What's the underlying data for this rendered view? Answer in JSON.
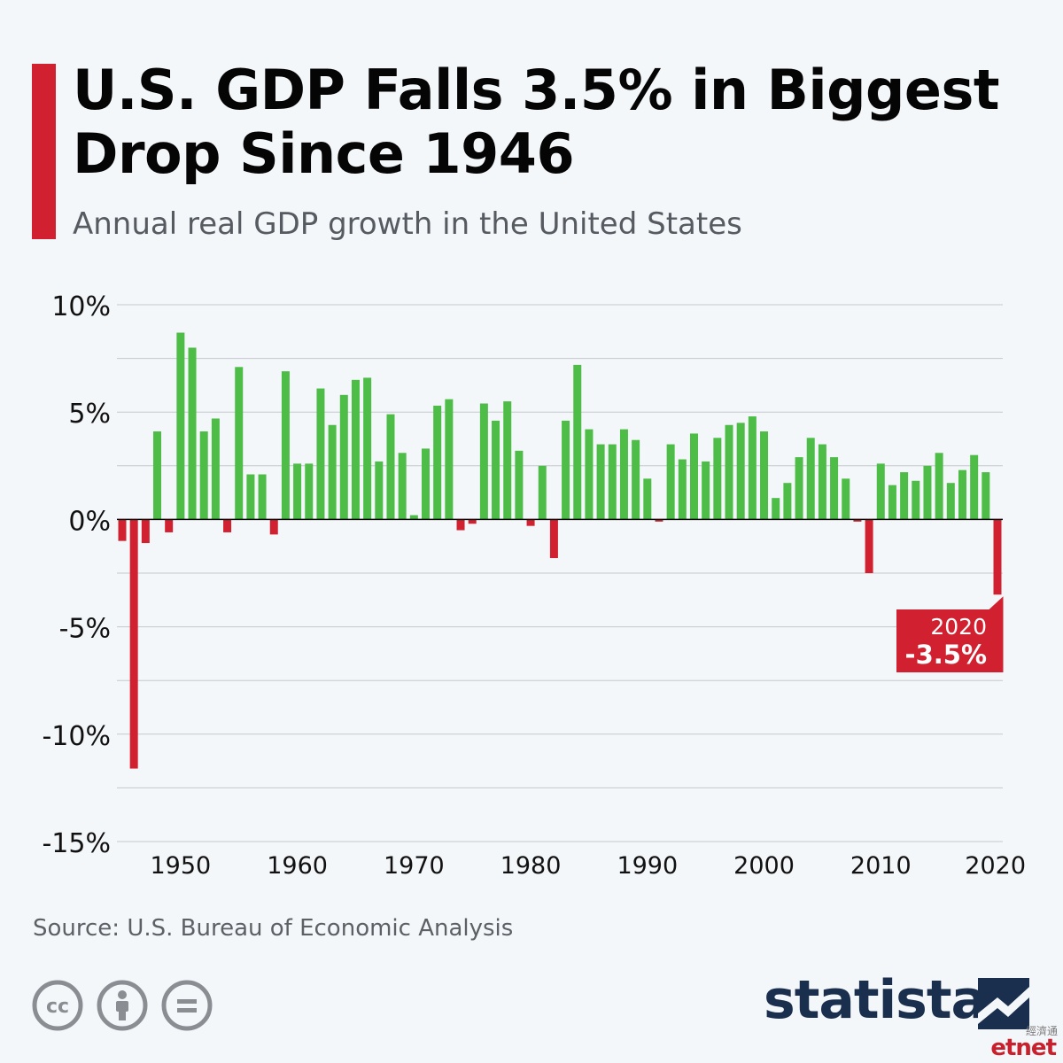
{
  "header": {
    "title": "U.S. GDP Falls 3.5% in Biggest Drop Since 1946",
    "subtitle": "Annual real GDP growth in the United States"
  },
  "footer": {
    "source": "Source: U.S. Bureau of Economic Analysis",
    "license_icons": [
      "cc-icon",
      "attribution-icon",
      "no-derivatives-icon"
    ],
    "brand": "statista",
    "watermark": "etnet",
    "watermark_cn": "經濟通"
  },
  "colors": {
    "positive": "#4dbd47",
    "negative": "#d1202f",
    "accent": "#d1202f",
    "grid": "#c5c8cc",
    "brand": "#1a2e4d"
  },
  "chart_data": {
    "type": "bar",
    "title": "U.S. GDP Falls 3.5% in Biggest Drop Since 1946",
    "subtitle": "Annual real GDP growth in the United States",
    "xlabel": "",
    "ylabel": "",
    "x": [
      1945,
      1946,
      1947,
      1948,
      1949,
      1950,
      1951,
      1952,
      1953,
      1954,
      1955,
      1956,
      1957,
      1958,
      1959,
      1960,
      1961,
      1962,
      1963,
      1964,
      1965,
      1966,
      1967,
      1968,
      1969,
      1970,
      1971,
      1972,
      1973,
      1974,
      1975,
      1976,
      1977,
      1978,
      1979,
      1980,
      1981,
      1982,
      1983,
      1984,
      1985,
      1986,
      1987,
      1988,
      1989,
      1990,
      1991,
      1992,
      1993,
      1994,
      1995,
      1996,
      1997,
      1998,
      1999,
      2000,
      2001,
      2002,
      2003,
      2004,
      2005,
      2006,
      2007,
      2008,
      2009,
      2010,
      2011,
      2012,
      2013,
      2014,
      2015,
      2016,
      2017,
      2018,
      2019,
      2020
    ],
    "values": [
      -1.0,
      -11.6,
      -1.1,
      4.1,
      -0.6,
      8.7,
      8.0,
      4.1,
      4.7,
      -0.6,
      7.1,
      2.1,
      2.1,
      -0.7,
      6.9,
      2.6,
      2.6,
      6.1,
      4.4,
      5.8,
      6.5,
      6.6,
      2.7,
      4.9,
      3.1,
      0.2,
      3.3,
      5.3,
      5.6,
      -0.5,
      -0.2,
      5.4,
      4.6,
      5.5,
      3.2,
      -0.3,
      2.5,
      -1.8,
      4.6,
      7.2,
      4.2,
      3.5,
      3.5,
      4.2,
      3.7,
      1.9,
      -0.1,
      3.5,
      2.8,
      4.0,
      2.7,
      3.8,
      4.4,
      4.5,
      4.8,
      4.1,
      1.0,
      1.7,
      2.9,
      3.8,
      3.5,
      2.9,
      1.9,
      -0.1,
      -2.5,
      2.6,
      1.6,
      2.2,
      1.8,
      2.5,
      3.1,
      1.7,
      2.3,
      3.0,
      2.2,
      -3.5
    ],
    "ylim": [
      -15,
      10
    ],
    "yticks": [
      10,
      5,
      0,
      -5,
      -10,
      -15
    ],
    "ytick_labels": [
      "10%",
      "5%",
      "0%",
      "-5%",
      "-10%",
      "-15%"
    ],
    "xticks": [
      1950,
      1960,
      1970,
      1980,
      1990,
      2000,
      2010,
      2020
    ],
    "xtick_labels": [
      "1950",
      "1960",
      "1970",
      "1980",
      "1990",
      "2000",
      "2010",
      "2020"
    ],
    "grid": true,
    "annotation": {
      "x": 2020,
      "year_label": "2020",
      "value_label": "-3.5%"
    }
  }
}
